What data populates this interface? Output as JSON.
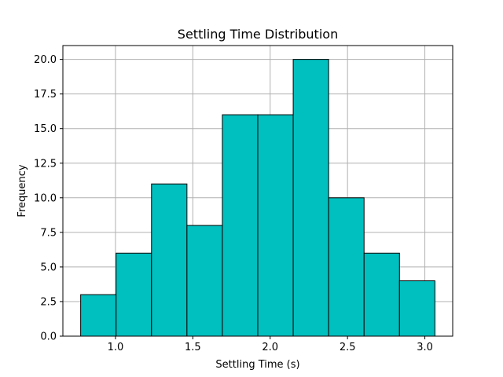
{
  "chart_data": {
    "type": "bar",
    "title": "Settling Time Distribution",
    "xlabel": "Settling Time (s)",
    "ylabel": "Frequency",
    "bin_edges": [
      0.775,
      1.004,
      1.233,
      1.462,
      1.691,
      1.92,
      2.149,
      2.378,
      2.607,
      2.836,
      3.065
    ],
    "values": [
      3,
      6,
      11,
      8,
      16,
      16,
      20,
      10,
      6,
      4
    ],
    "xlim": [
      0.66,
      3.18
    ],
    "ylim": [
      0,
      21
    ],
    "xticks": [
      1.0,
      1.5,
      2.0,
      2.5,
      3.0
    ],
    "xtick_labels": [
      "1.0",
      "1.5",
      "2.0",
      "2.5",
      "3.0"
    ],
    "yticks": [
      0,
      2.5,
      5,
      7.5,
      10,
      12.5,
      15,
      17.5,
      20
    ],
    "ytick_labels": [
      "0.0",
      "2.5",
      "5.0",
      "7.5",
      "10.0",
      "12.5",
      "15.0",
      "17.5",
      "20.0"
    ],
    "grid": true,
    "bar_color": "#00bfbf",
    "edge_color": "#000000",
    "grid_color": "#b0b0b0"
  }
}
